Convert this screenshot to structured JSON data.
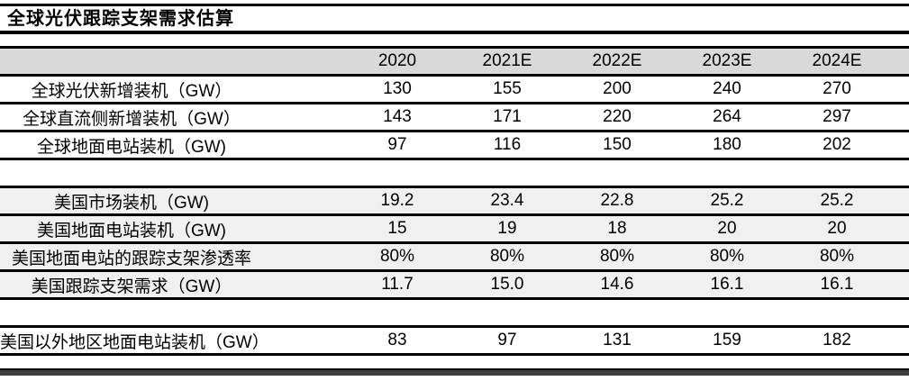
{
  "title": "全球光伏跟踪支架需求估算",
  "table": {
    "columns": [
      "2020",
      "2021E",
      "2022E",
      "2023E",
      "2024E"
    ],
    "rows": [
      {
        "label": "全球光伏新增装机（GW）",
        "values": [
          "130",
          "155",
          "200",
          "240",
          "270"
        ],
        "shaded": false,
        "spacer": false
      },
      {
        "label": "全球直流侧新增装机（GW）",
        "values": [
          "143",
          "171",
          "220",
          "264",
          "297"
        ],
        "shaded": false,
        "spacer": false
      },
      {
        "label": "全球地面电站装机（GW)",
        "values": [
          "97",
          "116",
          "150",
          "180",
          "202"
        ],
        "shaded": false,
        "spacer": false
      },
      {
        "label": "",
        "values": [
          "",
          "",
          "",
          "",
          ""
        ],
        "shaded": false,
        "spacer": true
      },
      {
        "label": "美国市场装机（GW)",
        "values": [
          "19.2",
          "23.4",
          "22.8",
          "25.2",
          "25.2"
        ],
        "shaded": true,
        "spacer": false
      },
      {
        "label": "美国地面电站装机（GW)",
        "values": [
          "15",
          "19",
          "18",
          "20",
          "20"
        ],
        "shaded": true,
        "spacer": false
      },
      {
        "label": "美国地面电站的跟踪支架渗透率",
        "values": [
          "80%",
          "80%",
          "80%",
          "80%",
          "80%"
        ],
        "shaded": true,
        "spacer": false
      },
      {
        "label": "美国跟踪支架需求（GW）",
        "values": [
          "11.7",
          "15.0",
          "14.6",
          "16.1",
          "16.1"
        ],
        "shaded": true,
        "spacer": false
      },
      {
        "label": "",
        "values": [
          "",
          "",
          "",
          "",
          ""
        ],
        "shaded": false,
        "spacer": true
      },
      {
        "label": "美国以外地区地面电站装机（GW）",
        "values": [
          "83",
          "97",
          "131",
          "159",
          "182"
        ],
        "shaded": false,
        "spacer": false
      }
    ]
  },
  "colors": {
    "header_bg": "#d9d9d9",
    "shaded_row_bg": "#f0f0f0",
    "rule": "#000000",
    "bottom_bar": "#3d3d3d"
  },
  "chart_data": {
    "type": "table",
    "title": "全球光伏跟踪支架需求估算",
    "columns": [
      "",
      "2020",
      "2021E",
      "2022E",
      "2023E",
      "2024E"
    ],
    "rows": [
      [
        "全球光伏新增装机（GW）",
        130,
        155,
        200,
        240,
        270
      ],
      [
        "全球直流侧新增装机（GW）",
        143,
        171,
        220,
        264,
        297
      ],
      [
        "全球地面电站装机（GW)",
        97,
        116,
        150,
        180,
        202
      ],
      [
        "美国市场装机（GW)",
        19.2,
        23.4,
        22.8,
        25.2,
        25.2
      ],
      [
        "美国地面电站装机（GW)",
        15,
        19,
        18,
        20,
        20
      ],
      [
        "美国地面电站的跟踪支架渗透率",
        "80%",
        "80%",
        "80%",
        "80%",
        "80%"
      ],
      [
        "美国跟踪支架需求（GW）",
        11.7,
        15.0,
        14.6,
        16.1,
        16.1
      ],
      [
        "美国以外地区地面电站装机（GW）",
        83,
        97,
        131,
        159,
        182
      ]
    ]
  }
}
